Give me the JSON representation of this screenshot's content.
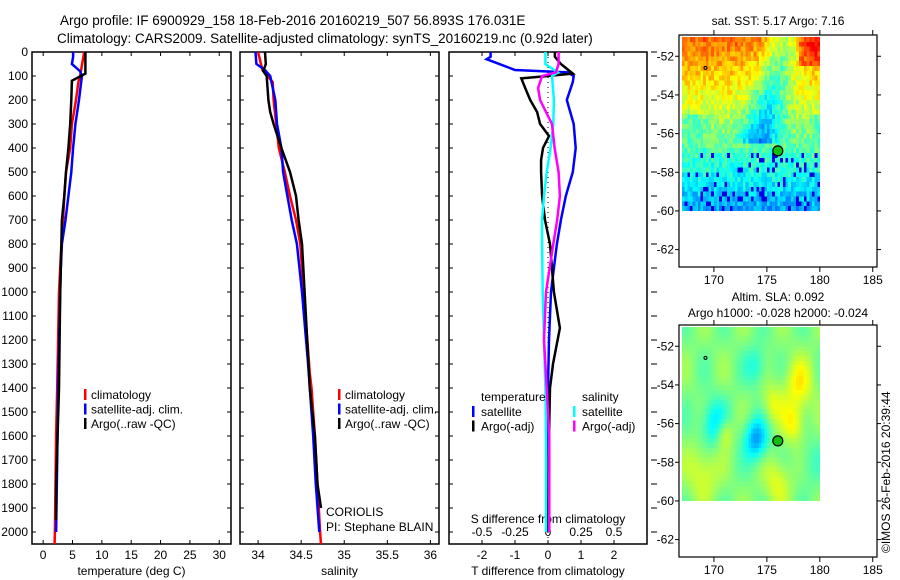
{
  "title": {
    "line1": "Argo profile: IF 6900929_158 18-Feb-2016 20160219_507 56.893S 176.031E",
    "line2": "Climatology: CARS2009. Satellite-adjusted climatology: synTS_20160219.nc (0.92d later)"
  },
  "colors": {
    "climatology": "#ff0000",
    "satellite": "#0000ff",
    "argo": "#000000",
    "s_satellite": "#00ffff",
    "s_argo": "#ff00ff"
  },
  "credits": {
    "line1": "CORIOLIS",
    "line2": "PI: Stephane BLAIN",
    "copyright": "©IMOS 26-Feb-2016 20:39:44"
  },
  "chart_data": [
    {
      "type": "line",
      "name": "temperature-profile",
      "xlabel": "temperature (deg C)",
      "ylabel": "",
      "xlim": [
        -1.9,
        32
      ],
      "ylim": [
        2050,
        0
      ],
      "xticks": [
        0,
        5,
        10,
        15,
        20,
        25,
        30
      ],
      "yticks": [
        0,
        100,
        200,
        300,
        400,
        500,
        600,
        700,
        800,
        900,
        1000,
        1100,
        1200,
        1300,
        1400,
        1500,
        1600,
        1700,
        1800,
        1900,
        2000
      ],
      "legend": [
        "climatology",
        "satellite-adj. clim.",
        "Argo(..raw -QC)"
      ],
      "series": [
        {
          "name": "climatology",
          "color": "#ff0000",
          "depth": [
            0,
            100,
            125,
            200,
            300,
            400,
            500,
            600,
            700,
            800,
            1000,
            1200,
            1400,
            1600,
            2000,
            2050
          ],
          "values": [
            7.0,
            6.3,
            6.0,
            5.6,
            4.9,
            4.6,
            3.9,
            3.6,
            3.4,
            3.1,
            2.7,
            2.55,
            2.4,
            2.2,
            2.0,
            1.95
          ]
        },
        {
          "name": "satellite-adj. clim.",
          "color": "#0000ff",
          "depth": [
            0,
            20,
            50,
            80,
            100,
            200,
            300,
            400,
            500,
            600,
            700,
            800,
            900,
            1000,
            1400,
            1700,
            2000
          ],
          "values": [
            5.1,
            5.1,
            4.9,
            6.3,
            6.6,
            6.1,
            5.5,
            5.1,
            4.8,
            4.3,
            3.8,
            3.2,
            3.0,
            2.9,
            2.55,
            2.4,
            2.2
          ]
        },
        {
          "name": "Argo(..raw -QC)",
          "color": "#000000",
          "depth": [
            0,
            90,
            120,
            200,
            300,
            400,
            500,
            600,
            700,
            800,
            1000,
            1400,
            1800,
            1950
          ],
          "values": [
            7.2,
            7.2,
            4.9,
            4.8,
            4.6,
            4.3,
            3.9,
            3.6,
            3.2,
            3.1,
            2.9,
            2.7,
            2.2,
            2.2
          ]
        }
      ]
    },
    {
      "type": "line",
      "name": "salinity-profile",
      "xlabel": "salinity",
      "xlim": [
        33.79,
        36.1
      ],
      "ylim": [
        2050,
        0
      ],
      "xticks": [
        34,
        34.5,
        35,
        35.5,
        36
      ],
      "legend": [
        "climatology",
        "satellite-adj. clim.",
        "Argo(..raw -QC)"
      ],
      "series": [
        {
          "name": "climatology",
          "color": "#ff0000",
          "depth": [
            0,
            75,
            125,
            200,
            300,
            400,
            500,
            600,
            700,
            800,
            1000,
            1340,
            1400,
            1600,
            1800,
            2000,
            2050
          ],
          "values": [
            34.0,
            34.05,
            34.17,
            34.18,
            34.21,
            34.24,
            34.31,
            34.37,
            34.44,
            34.49,
            34.53,
            34.6,
            34.62,
            34.66,
            34.69,
            34.72,
            34.73
          ]
        },
        {
          "name": "satellite-adj. clim.",
          "color": "#0000ff",
          "depth": [
            0,
            50,
            75,
            100,
            200,
            300,
            400,
            500,
            600,
            700,
            800,
            1000,
            1300,
            1400,
            1600,
            1800,
            2000
          ],
          "values": [
            33.97,
            33.98,
            34.08,
            34.14,
            34.2,
            34.22,
            34.27,
            34.29,
            34.34,
            34.39,
            34.45,
            34.51,
            34.58,
            34.6,
            34.64,
            34.67,
            34.71
          ]
        },
        {
          "name": "Argo(..raw -QC)",
          "color": "#000000",
          "depth": [
            0,
            50,
            80,
            100,
            200,
            250,
            300,
            400,
            500,
            600,
            700,
            800,
            1000,
            1400,
            1600,
            1800,
            1900
          ],
          "values": [
            34.08,
            34.09,
            34.06,
            34.1,
            34.12,
            34.14,
            34.18,
            34.27,
            34.37,
            34.44,
            34.47,
            34.51,
            34.54,
            34.6,
            34.66,
            34.69,
            34.73
          ]
        }
      ]
    },
    {
      "type": "line",
      "name": "difference-profile",
      "xlabel": "T difference from climatology",
      "x2label": "S difference from climatology",
      "xlim": [
        -3,
        3
      ],
      "x2lim": [
        -0.75,
        0.75
      ],
      "ylim": [
        2050,
        0
      ],
      "xticks": [
        -2,
        -1,
        0,
        1,
        2
      ],
      "x2ticks": [
        "-0.5",
        "-0.25",
        "0",
        "0.25",
        "0.5"
      ],
      "x2tick_values": [
        -0.5,
        -0.25,
        0,
        0.25,
        0.5
      ],
      "legend_groups": [
        {
          "title": "temperature",
          "entries": [
            "satellite",
            "Argo(-adj)"
          ]
        },
        {
          "title": "salinity",
          "entries": [
            "satellite",
            "Argo(-adj)"
          ]
        }
      ],
      "series": [
        {
          "name": "T satellite",
          "axis": "T",
          "color": "#0000ff",
          "depth": [
            0,
            20,
            30,
            75,
            85,
            100,
            125,
            200,
            300,
            400,
            500,
            600,
            700,
            800,
            900,
            1000,
            1200,
            1400,
            2000
          ],
          "values": [
            -1.74,
            -1.74,
            -1.86,
            -1.0,
            0.6,
            0.78,
            0.75,
            0.57,
            0.78,
            0.84,
            0.75,
            0.54,
            0.39,
            0.27,
            0.18,
            0.09,
            0.03,
            0.0,
            0.03
          ]
        },
        {
          "name": "T Argo(-adj)",
          "axis": "T",
          "color": "#000000",
          "depth": [
            0,
            20,
            50,
            90,
            100,
            110,
            150,
            200,
            250,
            300,
            350,
            400,
            450,
            500,
            600,
            700,
            800,
            1000,
            1150,
            1300,
            1400,
            1600,
            2000
          ],
          "values": [
            0.21,
            0.21,
            0.39,
            0.75,
            0.0,
            -0.81,
            -0.69,
            -0.54,
            -0.33,
            -0.24,
            0.03,
            -0.15,
            -0.21,
            -0.21,
            -0.18,
            -0.09,
            0.06,
            0.18,
            0.36,
            0.15,
            0.06,
            0.03,
            0.0
          ]
        },
        {
          "name": "S satellite",
          "axis": "S",
          "color": "#00ffff",
          "depth": [
            0,
            50,
            85,
            100,
            200,
            300,
            400,
            500,
            600,
            700,
            800,
            1000,
            1200,
            1400,
            1600,
            2000
          ],
          "values": [
            -0.02,
            -0.02,
            0.075,
            0.03,
            0.045,
            0.04,
            0.02,
            -0.01,
            -0.03,
            -0.045,
            -0.045,
            -0.04,
            -0.03,
            -0.02,
            -0.015,
            -0.015
          ]
        },
        {
          "name": "S Argo(-adj)",
          "axis": "S",
          "color": "#ff00ff",
          "depth": [
            0,
            50,
            85,
            100,
            150,
            200,
            250,
            300,
            400,
            500,
            600,
            700,
            800,
            1000,
            1200,
            1400,
            1600,
            2000
          ],
          "values": [
            0.08,
            0.08,
            0.06,
            -0.045,
            -0.075,
            -0.06,
            -0.015,
            0.03,
            0.05,
            0.08,
            0.09,
            0.07,
            0.04,
            -0.015,
            -0.03,
            -0.01,
            0.01,
            0.01
          ]
        }
      ]
    },
    {
      "type": "heatmap",
      "name": "sst-map",
      "title": "sat. SST: 5.17 Argo: 7.16",
      "xlim": [
        166.7,
        185.4
      ],
      "ylim": [
        -62.9,
        -50.9
      ],
      "xticks": [
        170,
        175,
        180,
        185
      ],
      "yticks": [
        -52,
        -54,
        -56,
        -58,
        -60,
        -62
      ],
      "data_extent": {
        "lon": [
          167,
          180
        ],
        "lat": [
          -60,
          -51
        ]
      },
      "argo_position": {
        "lon": 176.031,
        "lat": -56.893
      },
      "other_float": {
        "lon": 169.2,
        "lat": -52.6
      }
    },
    {
      "type": "heatmap",
      "name": "sla-map",
      "title": "Altim. SLA: 0.092",
      "subtitle": "Argo h1000: -0.028 h2000: -0.024",
      "xlim": [
        166.7,
        185.4
      ],
      "ylim": [
        -62.9,
        -50.9
      ],
      "xticks": [
        170,
        175,
        180,
        185
      ],
      "yticks": [
        -52,
        -54,
        -56,
        -58,
        -60,
        -62
      ],
      "data_extent": {
        "lon": [
          167,
          180
        ],
        "lat": [
          -60,
          -51
        ]
      },
      "argo_position": {
        "lon": 176.031,
        "lat": -56.893
      },
      "other_float": {
        "lon": 169.2,
        "lat": -52.6
      }
    }
  ]
}
